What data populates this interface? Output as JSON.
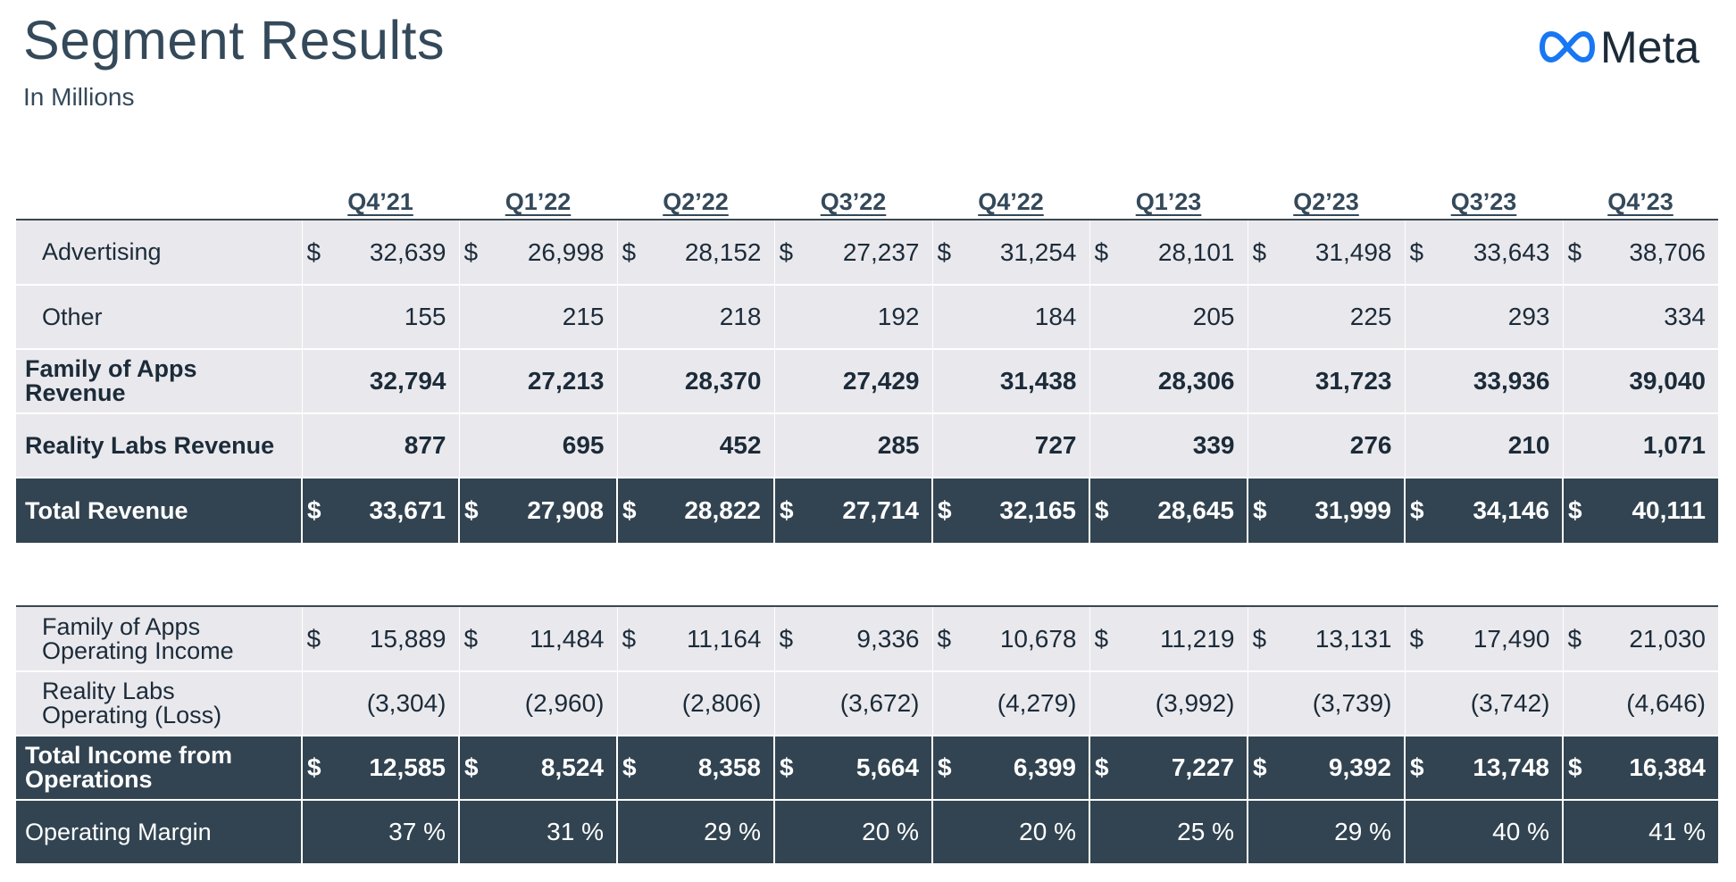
{
  "page": {
    "title": "Segment Results",
    "subtitle": "In Millions",
    "logo_text": "Meta",
    "logo_color": "#1877f2"
  },
  "quarters": [
    "Q4’21",
    "Q1’22",
    "Q2’22",
    "Q3’22",
    "Q4’22",
    "Q1’23",
    "Q2’23",
    "Q3’23",
    "Q4’23"
  ],
  "revenue_rows": [
    {
      "label": "Advertising",
      "dollar": "$",
      "values": [
        "32,639",
        "26,998",
        "28,152",
        "27,237",
        "31,254",
        "28,101",
        "31,498",
        "33,643",
        "38,706"
      ]
    },
    {
      "label": "Other",
      "dollar": "",
      "values": [
        "155",
        "215",
        "218",
        "192",
        "184",
        "205",
        "225",
        "293",
        "334"
      ]
    },
    {
      "label": "Family of Apps Revenue",
      "dollar": "",
      "values": [
        "32,794",
        "27,213",
        "28,370",
        "27,429",
        "31,438",
        "28,306",
        "31,723",
        "33,936",
        "39,040"
      ]
    },
    {
      "label": "Reality Labs Revenue",
      "dollar": "",
      "values": [
        "877",
        "695",
        "452",
        "285",
        "727",
        "339",
        "276",
        "210",
        "1,071"
      ]
    },
    {
      "label": "Total Revenue",
      "dollar": "$",
      "values": [
        "33,671",
        "27,908",
        "28,822",
        "27,714",
        "32,165",
        "28,645",
        "31,999",
        "34,146",
        "40,111"
      ]
    }
  ],
  "income_rows": [
    {
      "label": "Family of Apps Operating Income",
      "dollar": "$",
      "values": [
        "15,889",
        "11,484",
        "11,164",
        "9,336",
        "10,678",
        "11,219",
        "13,131",
        "17,490",
        "21,030"
      ]
    },
    {
      "label": "Reality Labs Operating (Loss)",
      "dollar": "",
      "values": [
        "(3,304)",
        "(2,960)",
        "(2,806)",
        "(3,672)",
        "(4,279)",
        "(3,992)",
        "(3,739)",
        "(3,742)",
        "(4,646)"
      ]
    },
    {
      "label": "Total Income from Operations",
      "dollar": "$",
      "values": [
        "12,585",
        "8,524",
        "8,358",
        "5,664",
        "6,399",
        "7,227",
        "9,392",
        "13,748",
        "16,384"
      ]
    },
    {
      "label": "Operating Margin",
      "dollar": "",
      "values": [
        "37 %",
        "31 %",
        "29 %",
        "20 %",
        "20 %",
        "25 %",
        "29 %",
        "40 %",
        "41 %"
      ]
    }
  ]
}
